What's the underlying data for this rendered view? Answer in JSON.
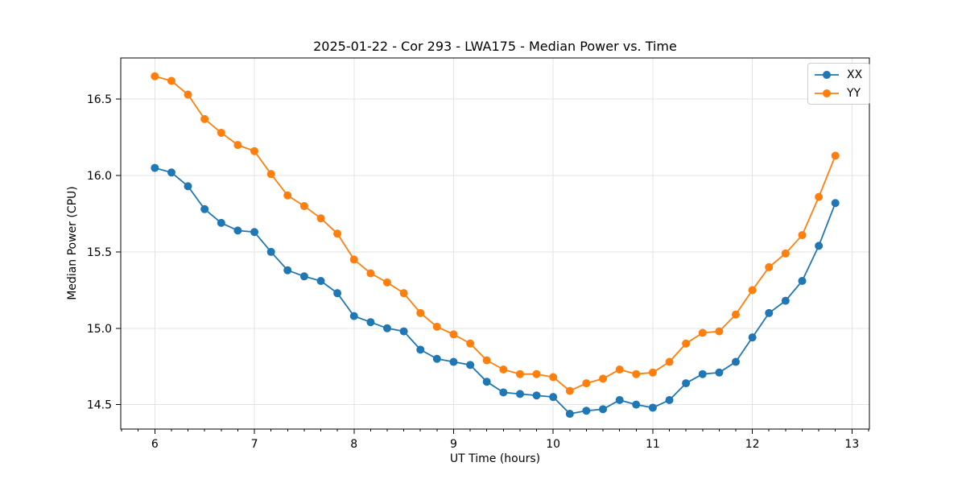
{
  "title": "2025-01-22 - Cor 293 - LWA175 - Median Power vs. Time",
  "colors": {
    "background": "#ffffff",
    "grid": "#e3e3e3",
    "spine": "#000000",
    "tick": "#000000",
    "text": "#000000",
    "legend_border": "#cccccc",
    "series_xx": "#1f77b4",
    "series_yy": "#ff7f0e"
  },
  "chart_data": {
    "type": "line",
    "title": "2025-01-22 - Cor 293 - LWA175 - Median Power vs. Time",
    "xlabel": "UT Time (hours)",
    "ylabel": "Median Power (CPU)",
    "xlim": [
      5.658,
      13.175
    ],
    "ylim": [
      14.34,
      16.77
    ],
    "xtick_values": [
      6,
      7,
      8,
      9,
      10,
      11,
      12,
      13
    ],
    "xtick_labels": [
      "6",
      "7",
      "8",
      "9",
      "10",
      "11",
      "12",
      "13"
    ],
    "ytick_values": [
      14.5,
      15.0,
      15.5,
      16.0,
      16.5
    ],
    "ytick_labels": [
      "14.5",
      "15.0",
      "15.5",
      "16.0",
      "16.5"
    ],
    "minor_xtick_step": 0.1666667,
    "grid": true,
    "legend_position": "upper right",
    "marker": "circle",
    "x": [
      6.0,
      6.167,
      6.333,
      6.5,
      6.667,
      6.833,
      7.0,
      7.167,
      7.333,
      7.5,
      7.667,
      7.833,
      8.0,
      8.167,
      8.333,
      8.5,
      8.667,
      8.833,
      9.0,
      9.167,
      9.333,
      9.5,
      9.667,
      9.833,
      10.0,
      10.167,
      10.333,
      10.5,
      10.667,
      10.833,
      11.0,
      11.167,
      11.333,
      11.5,
      11.667,
      11.833,
      12.0,
      12.167,
      12.333,
      12.5,
      12.667,
      12.833
    ],
    "series": [
      {
        "name": "XX",
        "color": "#1f77b4",
        "values": [
          16.05,
          16.02,
          15.93,
          15.78,
          15.69,
          15.64,
          15.63,
          15.5,
          15.38,
          15.34,
          15.31,
          15.23,
          15.08,
          15.04,
          15.0,
          14.98,
          14.86,
          14.8,
          14.78,
          14.76,
          14.65,
          14.58,
          14.57,
          14.56,
          14.55,
          14.44,
          14.46,
          14.47,
          14.53,
          14.5,
          14.48,
          14.53,
          14.64,
          14.7,
          14.71,
          14.78,
          14.94,
          15.1,
          15.18,
          15.31,
          15.54,
          15.82
        ]
      },
      {
        "name": "YY",
        "color": "#ff7f0e",
        "values": [
          16.65,
          16.62,
          16.53,
          16.37,
          16.28,
          16.2,
          16.16,
          16.01,
          15.87,
          15.8,
          15.72,
          15.62,
          15.45,
          15.36,
          15.3,
          15.23,
          15.1,
          15.01,
          14.96,
          14.9,
          14.79,
          14.73,
          14.7,
          14.7,
          14.68,
          14.59,
          14.64,
          14.67,
          14.73,
          14.7,
          14.71,
          14.78,
          14.9,
          14.97,
          14.98,
          15.09,
          15.25,
          15.4,
          15.49,
          15.61,
          15.86,
          16.13
        ]
      }
    ]
  }
}
